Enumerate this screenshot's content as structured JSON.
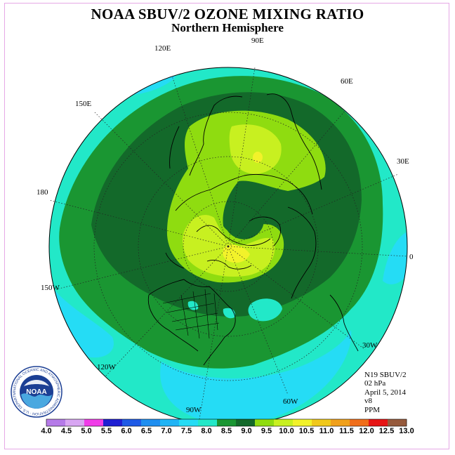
{
  "title": "NOAA SBUV/2 OZONE MIXING RATIO",
  "subtitle": "Northern Hemisphere",
  "longitude_labels": {
    "e90": "90E",
    "e60": "60E",
    "e30": "30E",
    "zero": "0",
    "w30": "30W",
    "w60": "60W",
    "w90": "90W",
    "w120": "120W",
    "w150": "150W",
    "d180": "180",
    "e150": "150E",
    "e120": "120E"
  },
  "info": {
    "satellite": "N19 SBUV/2",
    "level": "02 hPa",
    "date": "April 5, 2014",
    "version": "v8",
    "units": "PPM"
  },
  "logo": {
    "text": "NOAA",
    "ring_text": "NATIONAL OCEANIC AND ATMOSPHERIC ADMINISTRATION · U.S. DEPARTMENT OF COMMERCE"
  },
  "colorbar": {
    "labels": [
      "4.0",
      "4.5",
      "5.0",
      "5.5",
      "6.0",
      "6.5",
      "7.0",
      "7.5",
      "8.0",
      "8.5",
      "9.0",
      "9.5",
      "10.0",
      "10.5",
      "11.0",
      "11.5",
      "12.0",
      "12.5",
      "13.0"
    ],
    "colors": [
      "#b57ae8",
      "#d8a6f2",
      "#f03ce8",
      "#1e1ed2",
      "#1e5ae6",
      "#1e8ef0",
      "#20b4f5",
      "#25dcf5",
      "#22e8c8",
      "#1a9632",
      "#13692a",
      "#8fdc10",
      "#c8f020",
      "#f2f22a",
      "#f0c81a",
      "#f0a01a",
      "#f06e1a",
      "#e61414",
      "#965a3c"
    ]
  },
  "map_colors": {
    "aqua": "#22e8c8",
    "cyan": "#25dcf5",
    "green": "#1a9632",
    "dark_green": "#13692a",
    "lime": "#8fdc10",
    "yellow_green": "#c8f020",
    "yellow": "#f2f22a"
  }
}
